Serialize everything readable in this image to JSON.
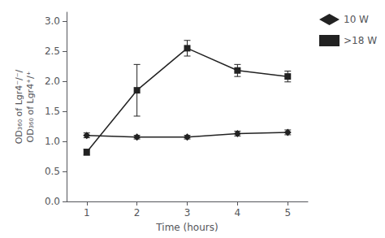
{
  "chart_data": {
    "type": "line",
    "xlabel": "Time (hours)",
    "ylabel": "OD₃₆₀ of Lgr4⁻/⁻/\nOD₃₆₀ of Lgr4⁺/⁺",
    "x": [
      1,
      2,
      3,
      4,
      5
    ],
    "series": [
      {
        "name": "10 W",
        "color": "#222222",
        "marker": "diamond",
        "line_style": "solid",
        "values": [
          1.1,
          1.07,
          1.07,
          1.13,
          1.15
        ],
        "yerr": [
          0.04,
          0.03,
          0.03,
          0.04,
          0.04
        ]
      },
      {
        "name": ">18 W",
        "color": "#222222",
        "marker": "square",
        "line_style": "solid",
        "values": [
          0.82,
          1.85,
          2.55,
          2.18,
          2.08
        ],
        "yerr": [
          0.05,
          0.43,
          0.13,
          0.1,
          0.09
        ]
      }
    ],
    "xlim": [
      0.6,
      5.4
    ],
    "xticks": [
      1,
      2,
      3,
      4,
      5
    ],
    "ylim": [
      0.0,
      3.15
    ],
    "yticks": [
      {
        "value": 0.0,
        "label": "0.0"
      },
      0.5,
      {
        "value": 1.0,
        "label": "1.0"
      },
      1.5,
      {
        "value": 2.0,
        "label": "2.0"
      },
      2.5,
      {
        "value": 3.0,
        "label": "3.0"
      }
    ],
    "grid": false,
    "legend": "upper right"
  }
}
